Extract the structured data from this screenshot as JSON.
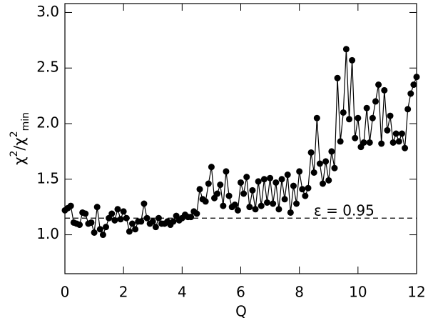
{
  "chart_data": {
    "type": "line",
    "xlabel": "Q",
    "ylabel": [
      "χ",
      "2",
      "/χ",
      "2",
      "min"
    ],
    "xlim": [
      0,
      12
    ],
    "ylim": [
      0.65,
      3.08
    ],
    "xticks": [
      0,
      2,
      4,
      6,
      8,
      10,
      12
    ],
    "yticks": [
      {
        "value": 1,
        "label": "1.0"
      },
      {
        "value": 1.5,
        "label": "1.5"
      },
      {
        "value": 2,
        "label": "2.0"
      },
      {
        "value": 2.5,
        "label": "2.5"
      },
      {
        "value": 3,
        "label": "3.0"
      }
    ],
    "threshold": 1.15,
    "annotation": "ε = 0.95",
    "color": "#000000",
    "x": [
      0,
      0.1,
      0.2,
      0.3,
      0.4,
      0.5,
      0.6,
      0.7,
      0.8,
      0.9,
      1,
      1.1,
      1.2,
      1.3,
      1.4,
      1.5,
      1.6,
      1.7,
      1.8,
      1.9,
      2,
      2.1,
      2.2,
      2.3,
      2.4,
      2.5,
      2.6,
      2.7,
      2.8,
      2.9,
      3,
      3.1,
      3.2,
      3.3,
      3.4,
      3.5,
      3.6,
      3.7,
      3.8,
      3.9,
      4,
      4.1,
      4.2,
      4.3,
      4.4,
      4.5,
      4.6,
      4.7,
      4.8,
      4.9,
      5,
      5.1,
      5.2,
      5.3,
      5.4,
      5.5,
      5.6,
      5.7,
      5.8,
      5.9,
      6,
      6.1,
      6.2,
      6.3,
      6.4,
      6.5,
      6.6,
      6.7,
      6.8,
      6.9,
      7,
      7.1,
      7.2,
      7.3,
      7.4,
      7.5,
      7.6,
      7.7,
      7.8,
      7.9,
      8,
      8.1,
      8.2,
      8.3,
      8.4,
      8.5,
      8.6,
      8.7,
      8.8,
      8.9,
      9,
      9.1,
      9.2,
      9.3,
      9.4,
      9.5,
      9.6,
      9.7,
      9.8,
      9.9,
      10,
      10.1,
      10.2,
      10.3,
      10.4,
      10.5,
      10.6,
      10.7,
      10.8,
      10.9,
      11,
      11.1,
      11.2,
      11.3,
      11.4,
      11.5,
      11.6,
      11.7,
      11.8,
      11.9,
      12
    ],
    "values": [
      1.22,
      1.24,
      1.26,
      1.11,
      1.1,
      1.09,
      1.2,
      1.19,
      1.1,
      1.11,
      1.02,
      1.25,
      1.05,
      1.0,
      1.07,
      1.15,
      1.19,
      1.13,
      1.23,
      1.14,
      1.21,
      1.15,
      1.03,
      1.1,
      1.05,
      1.12,
      1.12,
      1.28,
      1.15,
      1.1,
      1.12,
      1.07,
      1.15,
      1.1,
      1.1,
      1.12,
      1.09,
      1.12,
      1.17,
      1.13,
      1.15,
      1.18,
      1.16,
      1.16,
      1.21,
      1.19,
      1.41,
      1.32,
      1.3,
      1.46,
      1.61,
      1.33,
      1.37,
      1.45,
      1.26,
      1.57,
      1.35,
      1.25,
      1.27,
      1.22,
      1.47,
      1.37,
      1.52,
      1.25,
      1.4,
      1.23,
      1.48,
      1.26,
      1.5,
      1.29,
      1.51,
      1.28,
      1.47,
      1.23,
      1.5,
      1.32,
      1.54,
      1.2,
      1.44,
      1.28,
      1.57,
      1.41,
      1.35,
      1.42,
      1.74,
      1.56,
      2.05,
      1.64,
      1.46,
      1.66,
      1.49,
      1.75,
      1.6,
      2.41,
      1.84,
      2.1,
      2.67,
      2.04,
      2.57,
      1.87,
      2.05,
      1.79,
      1.83,
      2.14,
      1.83,
      2.05,
      2.2,
      2.35,
      1.82,
      2.3,
      1.94,
      2.07,
      1.83,
      1.91,
      1.84,
      1.91,
      1.78,
      2.13,
      2.27,
      2.35,
      2.42
    ]
  }
}
